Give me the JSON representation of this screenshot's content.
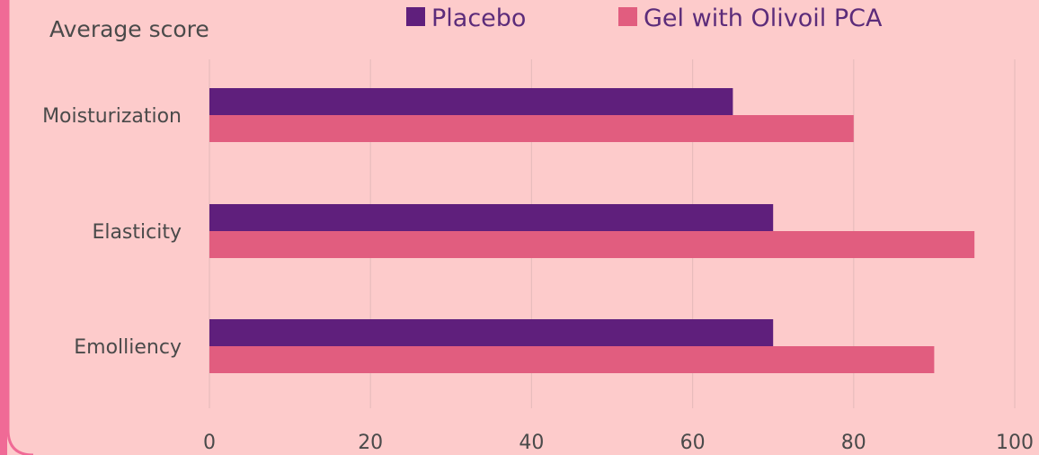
{
  "chart_data": {
    "type": "bar",
    "orientation": "horizontal",
    "title": "Average score",
    "categories": [
      "Moisturization",
      "Elasticity",
      "Emolliency"
    ],
    "series": [
      {
        "name": "Placebo",
        "values": [
          65,
          70,
          70
        ]
      },
      {
        "name": "Gel with Olivoil PCA",
        "values": [
          80,
          95,
          90
        ]
      }
    ],
    "xlim": [
      0,
      100
    ],
    "xticks": [
      0,
      20,
      40,
      60,
      80,
      100
    ],
    "grid": true,
    "legend_position": "top",
    "colors": {
      "Placebo": "#5f1f7c",
      "Gel with Olivoil PCA": "#e15d7f",
      "background": "#fdcbcb",
      "frame": "#f06a96",
      "grid": "#e8bcbc"
    }
  }
}
